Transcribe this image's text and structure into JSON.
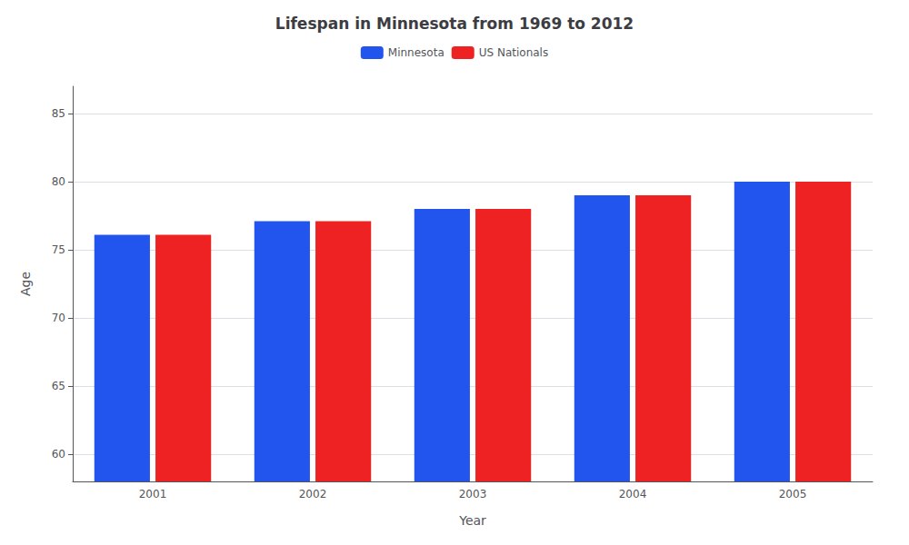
{
  "chart_data": {
    "type": "bar",
    "title": "Lifespan in Minnesota from 1969 to 2012",
    "xlabel": "Year",
    "ylabel": "Age",
    "categories": [
      "2001",
      "2002",
      "2003",
      "2004",
      "2005"
    ],
    "series": [
      {
        "name": "Minnesota",
        "color": "#2255ee",
        "values": [
          76.1,
          77.1,
          78.0,
          79.0,
          80.0
        ]
      },
      {
        "name": "US Nationals",
        "color": "#ee2222",
        "values": [
          76.1,
          77.1,
          78.0,
          79.0,
          80.0
        ]
      }
    ],
    "ylim": [
      58,
      87
    ],
    "yticks": [
      60,
      65,
      70,
      75,
      80,
      85
    ],
    "grid": true,
    "legend": "top"
  }
}
